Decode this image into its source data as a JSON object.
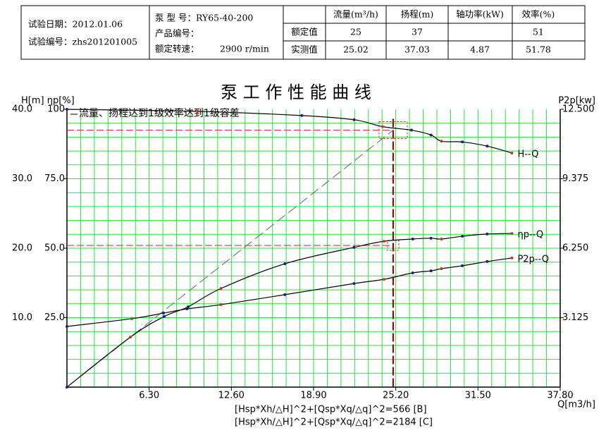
{
  "info": {
    "date": "试验日期：2012.01.06",
    "number": "试验编号：zhs201201005",
    "model": "泵 型 号：RY65-40-200",
    "product": "产品编号：",
    "speed_label": "额定转速：",
    "speed": "2900 r/min"
  },
  "table": {
    "headers": [
      "流量(m³/h)",
      "扬程(m)",
      "轴功率(kW)",
      "效率(%)"
    ],
    "rows": [
      [
        "额定值",
        "25",
        "37",
        null,
        "51"
      ],
      [
        "实测值",
        "25.02",
        "37.03",
        "4.87",
        "51.78"
      ]
    ]
  },
  "chart_data": {
    "type": "line",
    "title": "泵 工 作 性 能 曲 线",
    "annotation": "流量、扬程达到1级效率达到1级容差",
    "formulas": [
      "[Hsp*Xh/△H]^2+[Qsp*Xq/△q]^2=566 [B]",
      "[Hsp*Xh/△H]^2+[Qsp*Xq/△q]^2=2184 [C]"
    ],
    "x_label": "Q[m3/h]",
    "y_label": "H[m] ηp[%]",
    "y2_label": "P2p[kw]",
    "xlim": [
      0,
      37.8
    ],
    "xticks": [
      {
        "value": 6.3,
        "label": "6.30"
      },
      {
        "value": 12.6,
        "label": "12.60"
      },
      {
        "value": 18.9,
        "label": "18.90"
      },
      {
        "value": 25.2,
        "label": "25.20"
      },
      {
        "value": 31.5,
        "label": "31.50"
      },
      {
        "value": 37.8,
        "label": "37.80"
      }
    ],
    "ylim": [
      0,
      40
    ],
    "yticks": [
      {
        "value": 10,
        "label": "10.0"
      },
      {
        "value": 20,
        "label": "20.0"
      },
      {
        "value": 30,
        "label": "30.0"
      },
      {
        "value": 40,
        "label": "40.0"
      }
    ],
    "eta_lim": [
      0,
      100
    ],
    "eta_ticks": [
      {
        "value": 25,
        "label": "25.0"
      },
      {
        "value": 50,
        "label": "50.0"
      },
      {
        "value": 75,
        "label": "75.0"
      },
      100
    ],
    "y2lim": [
      0,
      12.5
    ],
    "y2ticks": [
      3.125,
      {
        "value": 6.25,
        "label": "6.250"
      },
      9.375,
      {
        "value": 12.5,
        "label": "12.500"
      }
    ],
    "grid": true,
    "grid_color": "#22e83a",
    "rated": {
      "x": 25,
      "y": 37,
      "eta": 51
    },
    "series": [
      {
        "name": "H--Q",
        "color": "#000000",
        "axis": "y",
        "x": [
          0,
          10,
          18,
          22.0,
          24.2,
          26.4,
          27.9,
          28.7,
          30.3,
          32.2,
          34.1
        ],
        "values": [
          40,
          39.7,
          39.1,
          38.5,
          37.5,
          37.0,
          36.3,
          35.4,
          35.3,
          34.7,
          33.7
        ]
      },
      {
        "name": "ηp--Q",
        "color": "#000000",
        "axis": "eta",
        "x": [
          0,
          4.86,
          7.45,
          9.29,
          11.8,
          16.7,
          22.0,
          24.3,
          26.5,
          27.9,
          28.7,
          30.3,
          32.2,
          34.1
        ],
        "values": [
          0,
          18.0,
          25.4,
          28.9,
          35.5,
          44.4,
          50.3,
          52.5,
          53.3,
          53.6,
          53.3,
          54.3,
          55.1,
          55.3
        ]
      },
      {
        "name": "P2p--Q",
        "color": "#000000",
        "axis": "y2",
        "x": [
          0,
          4.97,
          7.4,
          9.2,
          11.8,
          16.7,
          22.0,
          24.3,
          26.5,
          27.9,
          28.7,
          30.3,
          32.2,
          34.1
        ],
        "values": [
          2.73,
          3.08,
          3.33,
          3.52,
          3.71,
          4.16,
          4.66,
          4.85,
          5.14,
          5.23,
          5.33,
          5.46,
          5.65,
          5.81
        ]
      }
    ]
  }
}
